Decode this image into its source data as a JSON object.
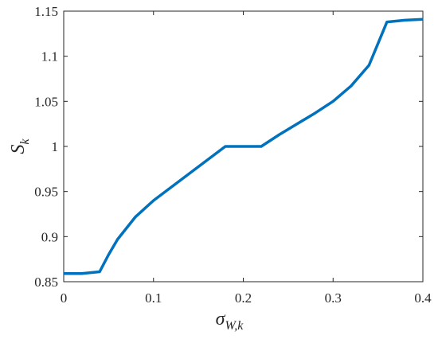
{
  "chart_data": {
    "type": "line",
    "xlabel": "σ",
    "xlabel_sub": "W,k",
    "ylabel": "S",
    "ylabel_sub": "k",
    "x": [
      0,
      0.02,
      0.04,
      0.05,
      0.06,
      0.08,
      0.1,
      0.12,
      0.14,
      0.16,
      0.18,
      0.2,
      0.22,
      0.24,
      0.26,
      0.28,
      0.3,
      0.32,
      0.34,
      0.36,
      0.38,
      0.4
    ],
    "series": [
      {
        "color": "#0072bd",
        "values": [
          0.859,
          0.859,
          0.861,
          0.88,
          0.897,
          0.922,
          0.94,
          0.955,
          0.97,
          0.985,
          1.0,
          1.0,
          1.0,
          1.013,
          1.025,
          1.037,
          1.05,
          1.067,
          1.09,
          1.138,
          1.14,
          1.141
        ]
      }
    ],
    "xlim": [
      0,
      0.4
    ],
    "xticks": [
      0,
      0.1,
      0.2,
      0.3,
      0.4
    ],
    "ylim": [
      0.85,
      1.15
    ],
    "yticks": [
      0.85,
      0.9,
      0.95,
      1,
      1.05,
      1.1,
      1.15
    ]
  }
}
